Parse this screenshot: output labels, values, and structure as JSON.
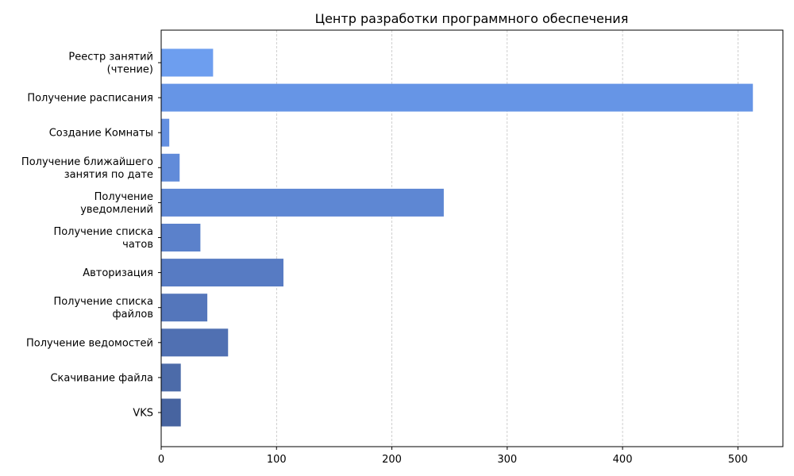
{
  "chart_data": {
    "type": "bar",
    "orientation": "horizontal",
    "title": "Центр разработки программного обеспечения",
    "xlabel": "",
    "ylabel": "",
    "xlim": [
      0,
      539
    ],
    "xticks": [
      0,
      100,
      200,
      300,
      400,
      500
    ],
    "grid": "vertical-dashed",
    "categories": [
      [
        "Реестр занятий",
        "(чтение)"
      ],
      [
        "Получение расписания"
      ],
      [
        "Создание Комнаты"
      ],
      [
        "Получение ближайшего",
        "занятия по дате"
      ],
      [
        "Получение",
        "уведомлений"
      ],
      [
        "Получение списка",
        "чатов"
      ],
      [
        "Авторизация"
      ],
      [
        "Получение списка",
        "файлов"
      ],
      [
        "Получение ведомостей"
      ],
      [
        "Скачивание файла"
      ],
      [
        "VKS"
      ]
    ],
    "values": [
      45,
      513,
      7,
      16,
      245,
      34,
      106,
      40,
      58,
      17,
      17
    ],
    "colors": [
      "#6d9eef",
      "#6695e6",
      "#638fe0",
      "#618bd9",
      "#5e87d3",
      "#5b81cb",
      "#577bc3",
      "#5476bb",
      "#5070b2",
      "#4c6ba9",
      "#4764a0"
    ]
  }
}
